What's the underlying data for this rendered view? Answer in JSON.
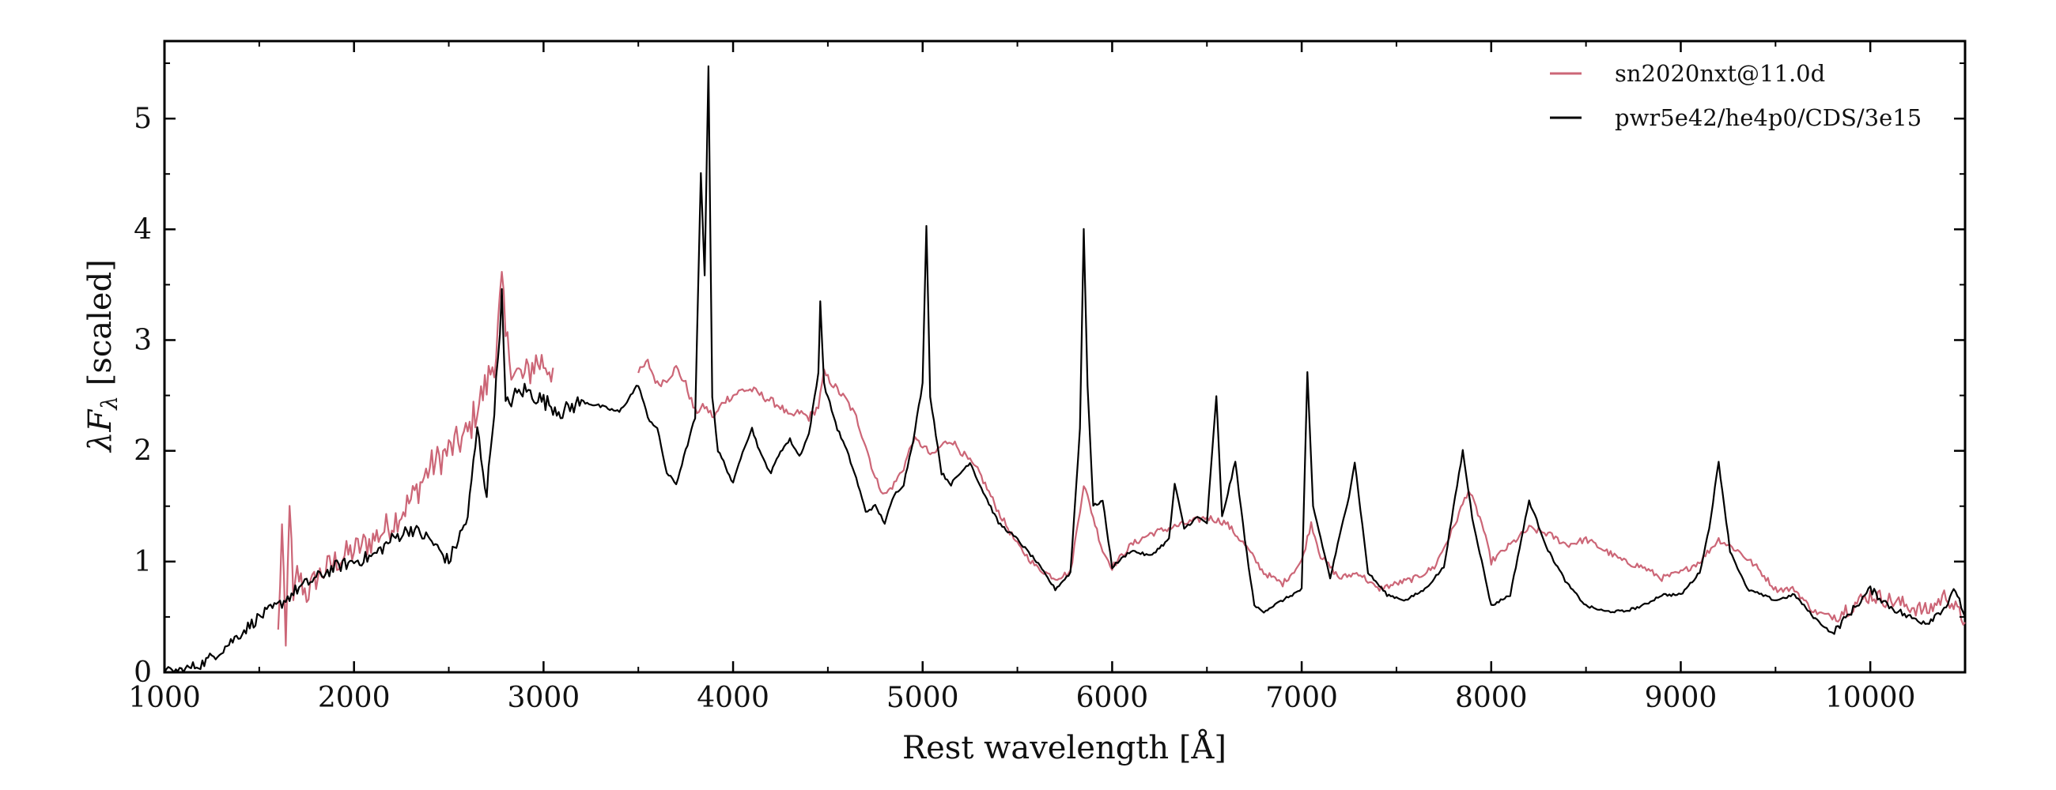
{
  "chart_data": {
    "type": "line",
    "xlabel": "Rest wavelength [Å]",
    "ylabel_main": "λF",
    "ylabel_sub": "λ",
    "ylabel_rest": " [scaled]",
    "xlim": [
      1000,
      10500
    ],
    "ylim": [
      0,
      5.7
    ],
    "xticks": [
      1000,
      2000,
      3000,
      4000,
      5000,
      6000,
      7000,
      8000,
      9000,
      10000
    ],
    "yticks": [
      0,
      1,
      2,
      3,
      4,
      5
    ],
    "grid": false,
    "legend_position": "top-right",
    "series": [
      {
        "name": "sn2020nxt@11.0d",
        "color": "#cc6677",
        "noise": 0.22,
        "points": [
          [
            1600,
            0.35
          ],
          [
            1620,
            1.3
          ],
          [
            1640,
            0.2
          ],
          [
            1660,
            1.6
          ],
          [
            1680,
            0.6
          ],
          [
            1700,
            0.9
          ],
          [
            1750,
            0.7
          ],
          [
            1800,
            0.85
          ],
          [
            1900,
            1.0
          ],
          [
            2000,
            1.1
          ],
          [
            2100,
            1.2
          ],
          [
            2200,
            1.35
          ],
          [
            2300,
            1.55
          ],
          [
            2400,
            1.85
          ],
          [
            2500,
            2.0
          ],
          [
            2600,
            2.15
          ],
          [
            2650,
            2.4
          ],
          [
            2700,
            2.6
          ],
          [
            2750,
            2.9
          ],
          [
            2780,
            3.5
          ],
          [
            2800,
            3.0
          ],
          [
            2850,
            2.7
          ],
          [
            2900,
            2.65
          ],
          [
            2950,
            2.8
          ],
          [
            3000,
            2.8
          ],
          [
            3050,
            2.75
          ],
          [
            3500,
            2.7
          ],
          [
            3550,
            2.8
          ],
          [
            3600,
            2.6
          ],
          [
            3650,
            2.65
          ],
          [
            3700,
            2.75
          ],
          [
            3750,
            2.6
          ],
          [
            3800,
            2.35
          ],
          [
            3850,
            2.4
          ],
          [
            3900,
            2.3
          ],
          [
            3950,
            2.45
          ],
          [
            4000,
            2.5
          ],
          [
            4050,
            2.55
          ],
          [
            4100,
            2.55
          ],
          [
            4150,
            2.5
          ],
          [
            4200,
            2.45
          ],
          [
            4250,
            2.4
          ],
          [
            4300,
            2.3
          ],
          [
            4350,
            2.35
          ],
          [
            4400,
            2.3
          ],
          [
            4450,
            2.4
          ],
          [
            4480,
            2.7
          ],
          [
            4550,
            2.55
          ],
          [
            4600,
            2.45
          ],
          [
            4650,
            2.3
          ],
          [
            4700,
            2.05
          ],
          [
            4750,
            1.75
          ],
          [
            4800,
            1.6
          ],
          [
            4850,
            1.7
          ],
          [
            4900,
            1.85
          ],
          [
            4950,
            2.1
          ],
          [
            5000,
            2.05
          ],
          [
            5050,
            1.95
          ],
          [
            5100,
            2.05
          ],
          [
            5150,
            2.1
          ],
          [
            5200,
            2.0
          ],
          [
            5250,
            1.9
          ],
          [
            5300,
            1.8
          ],
          [
            5400,
            1.45
          ],
          [
            5500,
            1.15
          ],
          [
            5600,
            0.95
          ],
          [
            5700,
            0.85
          ],
          [
            5780,
            0.9
          ],
          [
            5850,
            1.7
          ],
          [
            5900,
            1.4
          ],
          [
            5950,
            1.1
          ],
          [
            6000,
            0.95
          ],
          [
            6100,
            1.15
          ],
          [
            6200,
            1.25
          ],
          [
            6300,
            1.3
          ],
          [
            6400,
            1.35
          ],
          [
            6500,
            1.4
          ],
          [
            6600,
            1.35
          ],
          [
            6700,
            1.15
          ],
          [
            6800,
            0.9
          ],
          [
            6900,
            0.8
          ],
          [
            7000,
            1.0
          ],
          [
            7050,
            1.35
          ],
          [
            7100,
            1.05
          ],
          [
            7200,
            0.85
          ],
          [
            7300,
            0.9
          ],
          [
            7400,
            0.75
          ],
          [
            7500,
            0.8
          ],
          [
            7600,
            0.85
          ],
          [
            7700,
            0.95
          ],
          [
            7800,
            1.3
          ],
          [
            7880,
            1.65
          ],
          [
            7950,
            1.35
          ],
          [
            8000,
            1.0
          ],
          [
            8100,
            1.15
          ],
          [
            8200,
            1.3
          ],
          [
            8300,
            1.25
          ],
          [
            8400,
            1.15
          ],
          [
            8500,
            1.2
          ],
          [
            8600,
            1.1
          ],
          [
            8700,
            1.0
          ],
          [
            8800,
            0.95
          ],
          [
            8900,
            0.85
          ],
          [
            9000,
            0.9
          ],
          [
            9100,
            1.0
          ],
          [
            9200,
            1.2
          ],
          [
            9300,
            1.1
          ],
          [
            9400,
            0.95
          ],
          [
            9500,
            0.75
          ],
          [
            9600,
            0.75
          ],
          [
            9700,
            0.55
          ],
          [
            9800,
            0.5
          ],
          [
            9900,
            0.6
          ],
          [
            10000,
            0.7
          ],
          [
            10100,
            0.65
          ],
          [
            10200,
            0.6
          ],
          [
            10300,
            0.55
          ],
          [
            10400,
            0.7
          ],
          [
            10500,
            0.45
          ]
        ],
        "gap_after": 3050
      },
      {
        "name": "pwr5e42/he4p0/CDS/3e15",
        "color": "#000000",
        "noise": 0.1,
        "points": [
          [
            1000,
            0.0
          ],
          [
            1100,
            0.02
          ],
          [
            1200,
            0.08
          ],
          [
            1300,
            0.2
          ],
          [
            1400,
            0.35
          ],
          [
            1500,
            0.5
          ],
          [
            1600,
            0.6
          ],
          [
            1700,
            0.75
          ],
          [
            1800,
            0.85
          ],
          [
            1900,
            0.95
          ],
          [
            2000,
            1.0
          ],
          [
            2100,
            1.05
          ],
          [
            2200,
            1.2
          ],
          [
            2300,
            1.3
          ],
          [
            2400,
            1.2
          ],
          [
            2500,
            1.0
          ],
          [
            2600,
            1.4
          ],
          [
            2650,
            2.2
          ],
          [
            2700,
            1.6
          ],
          [
            2750,
            2.6
          ],
          [
            2780,
            3.4
          ],
          [
            2800,
            2.4
          ],
          [
            2850,
            2.5
          ],
          [
            2900,
            2.55
          ],
          [
            2950,
            2.5
          ],
          [
            3000,
            2.45
          ],
          [
            3100,
            2.35
          ],
          [
            3200,
            2.45
          ],
          [
            3300,
            2.4
          ],
          [
            3400,
            2.35
          ],
          [
            3500,
            2.6
          ],
          [
            3550,
            2.3
          ],
          [
            3600,
            2.2
          ],
          [
            3650,
            1.8
          ],
          [
            3700,
            1.7
          ],
          [
            3750,
            2.0
          ],
          [
            3800,
            2.3
          ],
          [
            3830,
            4.5
          ],
          [
            3850,
            3.6
          ],
          [
            3870,
            5.45
          ],
          [
            3890,
            2.5
          ],
          [
            3920,
            2.0
          ],
          [
            3950,
            1.9
          ],
          [
            4000,
            1.7
          ],
          [
            4050,
            2.0
          ],
          [
            4100,
            2.2
          ],
          [
            4150,
            1.95
          ],
          [
            4200,
            1.8
          ],
          [
            4250,
            2.0
          ],
          [
            4300,
            2.1
          ],
          [
            4350,
            1.95
          ],
          [
            4400,
            2.15
          ],
          [
            4450,
            2.7
          ],
          [
            4460,
            3.35
          ],
          [
            4480,
            2.6
          ],
          [
            4550,
            2.2
          ],
          [
            4600,
            2.0
          ],
          [
            4650,
            1.75
          ],
          [
            4700,
            1.45
          ],
          [
            4750,
            1.5
          ],
          [
            4800,
            1.35
          ],
          [
            4850,
            1.6
          ],
          [
            4900,
            1.7
          ],
          [
            4950,
            2.1
          ],
          [
            5000,
            2.6
          ],
          [
            5020,
            4.05
          ],
          [
            5040,
            2.5
          ],
          [
            5100,
            1.8
          ],
          [
            5150,
            1.7
          ],
          [
            5200,
            1.8
          ],
          [
            5250,
            1.9
          ],
          [
            5300,
            1.7
          ],
          [
            5400,
            1.35
          ],
          [
            5500,
            1.2
          ],
          [
            5600,
            1.0
          ],
          [
            5700,
            0.75
          ],
          [
            5780,
            0.9
          ],
          [
            5830,
            2.2
          ],
          [
            5850,
            4.0
          ],
          [
            5870,
            2.6
          ],
          [
            5900,
            1.5
          ],
          [
            5950,
            1.55
          ],
          [
            6000,
            0.95
          ],
          [
            6100,
            1.1
          ],
          [
            6200,
            1.05
          ],
          [
            6300,
            1.2
          ],
          [
            6330,
            1.7
          ],
          [
            6380,
            1.3
          ],
          [
            6450,
            1.4
          ],
          [
            6500,
            1.35
          ],
          [
            6550,
            2.5
          ],
          [
            6580,
            1.4
          ],
          [
            6650,
            1.9
          ],
          [
            6700,
            1.2
          ],
          [
            6750,
            0.6
          ],
          [
            6800,
            0.55
          ],
          [
            6900,
            0.65
          ],
          [
            7000,
            0.75
          ],
          [
            7030,
            2.7
          ],
          [
            7060,
            1.5
          ],
          [
            7150,
            0.85
          ],
          [
            7250,
            1.6
          ],
          [
            7280,
            1.9
          ],
          [
            7350,
            0.9
          ],
          [
            7450,
            0.7
          ],
          [
            7550,
            0.65
          ],
          [
            7650,
            0.75
          ],
          [
            7750,
            0.95
          ],
          [
            7850,
            2.0
          ],
          [
            7900,
            1.4
          ],
          [
            8000,
            0.6
          ],
          [
            8100,
            0.7
          ],
          [
            8200,
            1.55
          ],
          [
            8300,
            1.1
          ],
          [
            8400,
            0.8
          ],
          [
            8500,
            0.6
          ],
          [
            8600,
            0.55
          ],
          [
            8700,
            0.55
          ],
          [
            8800,
            0.6
          ],
          [
            8900,
            0.7
          ],
          [
            9000,
            0.7
          ],
          [
            9100,
            0.9
          ],
          [
            9150,
            1.3
          ],
          [
            9200,
            1.9
          ],
          [
            9260,
            1.1
          ],
          [
            9350,
            0.75
          ],
          [
            9500,
            0.65
          ],
          [
            9600,
            0.7
          ],
          [
            9700,
            0.5
          ],
          [
            9800,
            0.35
          ],
          [
            9900,
            0.55
          ],
          [
            10000,
            0.75
          ],
          [
            10100,
            0.6
          ],
          [
            10200,
            0.5
          ],
          [
            10300,
            0.45
          ],
          [
            10400,
            0.6
          ],
          [
            10450,
            0.75
          ],
          [
            10500,
            0.5
          ]
        ]
      }
    ]
  }
}
